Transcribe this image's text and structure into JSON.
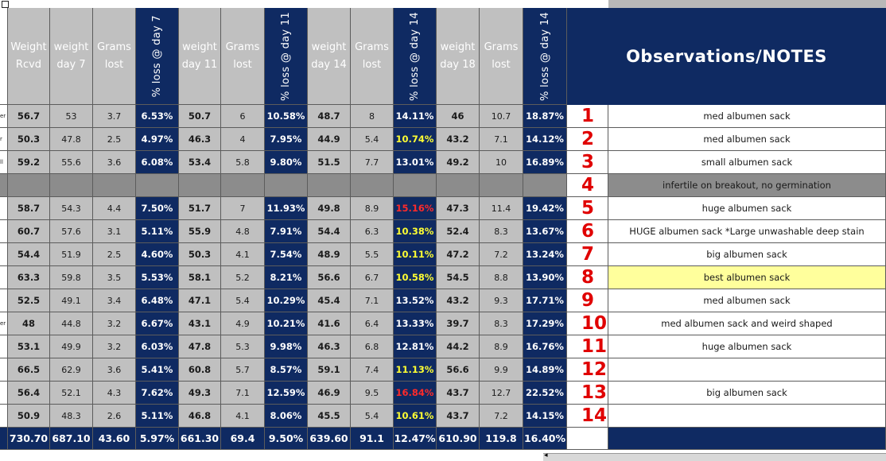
{
  "headers": {
    "weight_rcvd": "Weight Rcvd",
    "weight_day7": "weight day 7",
    "grams_lost": "Grams lost",
    "loss_day7": "% loss @ day 7",
    "weight_day11": "weight day 11",
    "loss_day11": "% loss @ day 11",
    "weight_day14": "weight day 14",
    "loss_day14": "% loss @ day 14",
    "weight_day18": "weight day 18",
    "loss_day14b": "% loss @ day 14",
    "observations": "Observations/NOTES"
  },
  "left_edge_marks": [
    "er",
    "r",
    "ll",
    "er"
  ],
  "rows": [
    {
      "num": "1",
      "w0": "56.7",
      "w7": "53",
      "g7": "3.7",
      "p7": "6.53%",
      "w11": "50.7",
      "g11": "6",
      "p11": "10.58%",
      "w14": "48.7",
      "g14": "8",
      "p14": "14.11%",
      "p14c": "white",
      "w18": "46",
      "g18": "10.7",
      "p18": "18.87%",
      "note": "med albumen sack",
      "hl": false
    },
    {
      "num": "2",
      "w0": "50.3",
      "w7": "47.8",
      "g7": "2.5",
      "p7": "4.97%",
      "w11": "46.3",
      "g11": "4",
      "p11": "7.95%",
      "w14": "44.9",
      "g14": "5.4",
      "p14": "10.74%",
      "p14c": "yellow",
      "w18": "43.2",
      "g18": "7.1",
      "p18": "14.12%",
      "note": "med albumen sack",
      "hl": false
    },
    {
      "num": "3",
      "w0": "59.2",
      "w7": "55.6",
      "g7": "3.6",
      "p7": "6.08%",
      "w11": "53.4",
      "g11": "5.8",
      "p11": "9.80%",
      "w14": "51.5",
      "g14": "7.7",
      "p14": "13.01%",
      "p14c": "white",
      "w18": "49.2",
      "g18": "10",
      "p18": "16.89%",
      "note": "small albumen sack",
      "hl": false
    },
    {
      "num": "4",
      "blank": true,
      "note": "infertile on breakout, no germination"
    },
    {
      "num": "5",
      "w0": "58.7",
      "w7": "54.3",
      "g7": "4.4",
      "p7": "7.50%",
      "w11": "51.7",
      "g11": "7",
      "p11": "11.93%",
      "w14": "49.8",
      "g14": "8.9",
      "p14": "15.16%",
      "p14c": "red",
      "w18": "47.3",
      "g18": "11.4",
      "p18": "19.42%",
      "note": "huge albumen sack",
      "hl": false
    },
    {
      "num": "6",
      "w0": "60.7",
      "w7": "57.6",
      "g7": "3.1",
      "p7": "5.11%",
      "w11": "55.9",
      "g11": "4.8",
      "p11": "7.91%",
      "w14": "54.4",
      "g14": "6.3",
      "p14": "10.38%",
      "p14c": "yellow",
      "w18": "52.4",
      "g18": "8.3",
      "p18": "13.67%",
      "note": "HUGE albumen sack *Large unwashable deep stain",
      "hl": false
    },
    {
      "num": "7",
      "w0": "54.4",
      "w7": "51.9",
      "g7": "2.5",
      "p7": "4.60%",
      "w11": "50.3",
      "g11": "4.1",
      "p11": "7.54%",
      "w14": "48.9",
      "g14": "5.5",
      "p14": "10.11%",
      "p14c": "yellow",
      "w18": "47.2",
      "g18": "7.2",
      "p18": "13.24%",
      "note": "big albumen sack",
      "hl": false
    },
    {
      "num": "8",
      "w0": "63.3",
      "w7": "59.8",
      "g7": "3.5",
      "p7": "5.53%",
      "w11": "58.1",
      "g11": "5.2",
      "p11": "8.21%",
      "w14": "56.6",
      "g14": "6.7",
      "p14": "10.58%",
      "p14c": "yellow",
      "w18": "54.5",
      "g18": "8.8",
      "p18": "13.90%",
      "note": "best albumen sack",
      "hl": true
    },
    {
      "num": "9",
      "w0": "52.5",
      "w7": "49.1",
      "g7": "3.4",
      "p7": "6.48%",
      "w11": "47.1",
      "g11": "5.4",
      "p11": "10.29%",
      "w14": "45.4",
      "g14": "7.1",
      "p14": "13.52%",
      "p14c": "white",
      "w18": "43.2",
      "g18": "9.3",
      "p18": "17.71%",
      "note": "med albumen sack",
      "hl": false
    },
    {
      "num": "10",
      "w0": "48",
      "w7": "44.8",
      "g7": "3.2",
      "p7": "6.67%",
      "w11": "43.1",
      "g11": "4.9",
      "p11": "10.21%",
      "w14": "41.6",
      "g14": "6.4",
      "p14": "13.33%",
      "p14c": "white",
      "w18": "39.7",
      "g18": "8.3",
      "p18": "17.29%",
      "note": "med albumen sack and weird shaped",
      "hl": false
    },
    {
      "num": "11",
      "w0": "53.1",
      "w7": "49.9",
      "g7": "3.2",
      "p7": "6.03%",
      "w11": "47.8",
      "g11": "5.3",
      "p11": "9.98%",
      "w14": "46.3",
      "g14": "6.8",
      "p14": "12.81%",
      "p14c": "white",
      "w18": "44.2",
      "g18": "8.9",
      "p18": "16.76%",
      "note": "huge albumen sack",
      "hl": false
    },
    {
      "num": "12",
      "w0": "66.5",
      "w7": "62.9",
      "g7": "3.6",
      "p7": "5.41%",
      "w11": "60.8",
      "g11": "5.7",
      "p11": "8.57%",
      "w14": "59.1",
      "g14": "7.4",
      "p14": "11.13%",
      "p14c": "yellow",
      "w18": "56.6",
      "g18": "9.9",
      "p18": "14.89%",
      "note": "",
      "hl": false
    },
    {
      "num": "13",
      "w0": "56.4",
      "w7": "52.1",
      "g7": "4.3",
      "p7": "7.62%",
      "w11": "49.3",
      "g11": "7.1",
      "p11": "12.59%",
      "w14": "46.9",
      "g14": "9.5",
      "p14": "16.84%",
      "p14c": "red",
      "w18": "43.7",
      "g18": "12.7",
      "p18": "22.52%",
      "note": "big albumen sack",
      "hl": false
    },
    {
      "num": "14",
      "w0": "50.9",
      "w7": "48.3",
      "g7": "2.6",
      "p7": "5.11%",
      "w11": "46.8",
      "g11": "4.1",
      "p11": "8.06%",
      "w14": "45.5",
      "g14": "5.4",
      "p14": "10.61%",
      "p14c": "yellow",
      "w18": "43.7",
      "g18": "7.2",
      "p18": "14.15%",
      "note": "",
      "hl": false
    }
  ],
  "totals": {
    "w0": "730.70",
    "w7": "687.10",
    "g7": "43.60",
    "p7": "5.97%",
    "w11": "661.30",
    "g11": "69.4",
    "p11": "9.50%",
    "w14": "639.60",
    "g14": "91.1",
    "p14": "12.47%",
    "w18": "610.90",
    "g18": "119.8",
    "p18": "16.40%"
  },
  "colors": {
    "navy": "#0f2a62",
    "gray": "#c0c0c0",
    "yellow_text": "#ffff33",
    "red_text": "#ff2a2a",
    "number_red": "#e00000",
    "highlight": "#ffff9c"
  }
}
